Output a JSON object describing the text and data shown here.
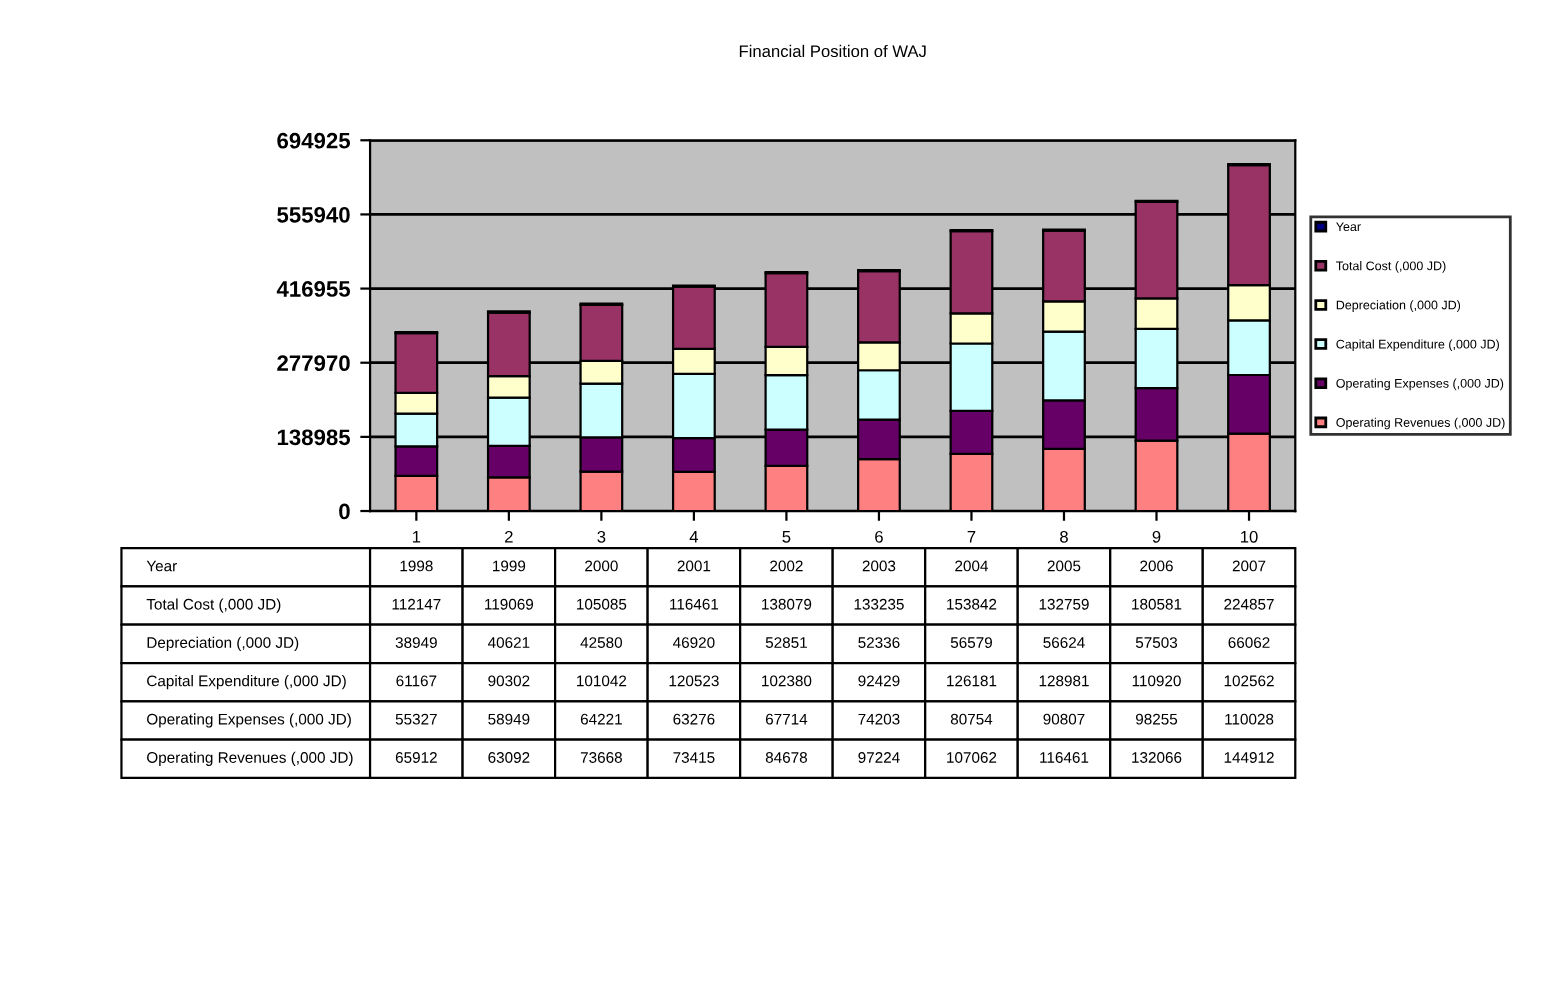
{
  "chart_data": {
    "type": "bar",
    "title": "Financial Position of WAJ",
    "stacked": true,
    "categories": [
      "1",
      "2",
      "3",
      "4",
      "5",
      "6",
      "7",
      "8",
      "9",
      "10"
    ],
    "series": [
      {
        "name": "Operating Revenues (,000 JD)",
        "color": "#ff8080",
        "values": [
          65912,
          63092,
          73668,
          73415,
          84678,
          97224,
          107062,
          116461,
          132066,
          144912
        ]
      },
      {
        "name": "Operating Expenses (,000 JD)",
        "color": "#660066",
        "values": [
          55327,
          58949,
          64221,
          63276,
          67714,
          74203,
          80754,
          90807,
          98255,
          110028
        ]
      },
      {
        "name": "Capital Expenditure (,000 JD)",
        "color": "#ccffff",
        "values": [
          61167,
          90302,
          101042,
          120523,
          102380,
          92429,
          126181,
          128981,
          110920,
          102562
        ]
      },
      {
        "name": "Depreciation (,000 JD)",
        "color": "#ffffcc",
        "values": [
          38949,
          40621,
          42580,
          46920,
          52851,
          52336,
          56579,
          56624,
          57503,
          66062
        ]
      },
      {
        "name": "Total Cost (,000 JD)",
        "color": "#993366",
        "values": [
          112147,
          119069,
          105085,
          116461,
          138079,
          133235,
          153842,
          132759,
          180581,
          224857
        ]
      },
      {
        "name": "Year",
        "color": "#000080",
        "values": [
          1998,
          1999,
          2000,
          2001,
          2002,
          2003,
          2004,
          2005,
          2006,
          2007
        ]
      }
    ],
    "ylim": [
      0,
      694925
    ],
    "yticks": [
      0,
      138985,
      277970,
      416955,
      555940,
      694925
    ],
    "grid": "y",
    "legend": "right",
    "data_labels": true
  }
}
